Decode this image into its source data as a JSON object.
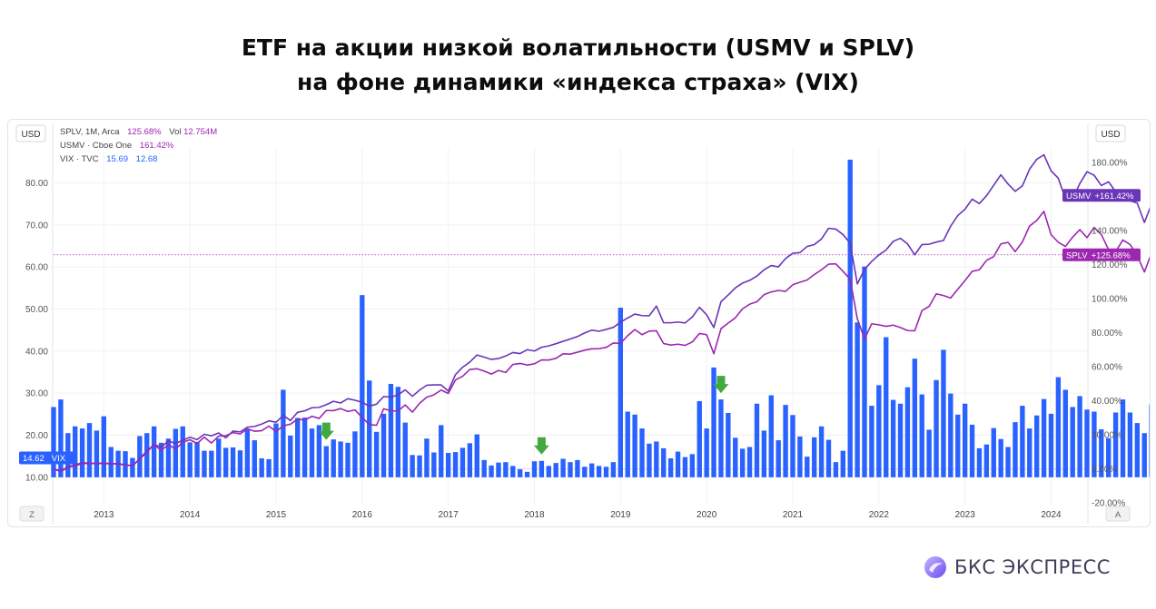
{
  "title_line1": "ETF на акции низкой волатильности (USMV и SPLV)",
  "title_line2": "на фоне динамики «индекса страха» (VIX)",
  "brand": "БКС ЭКСПРЕСС",
  "colors": {
    "vix": "#2962ff",
    "usmv": "#6a35b8",
    "splv": "#9c27b0",
    "arrow": "#43a83d"
  },
  "legend": {
    "splv_name": "SPLV, 1M, Arca",
    "splv_pct": "125.68%",
    "splv_vol": "Vol",
    "splv_vol_value": "12.754M",
    "usmv_name": "USMV · Cboe One",
    "usmv_pct": "161.42%",
    "vix_name": "VIX · TVC",
    "vix_v1": "15.69",
    "vix_v2": "12.68"
  },
  "currency_left": "USD",
  "currency_right": "USD",
  "corner_left": "Z",
  "corner_right": "A",
  "chart_data": {
    "type": "bar+line",
    "x_ticks": [
      "2013",
      "2014",
      "2015",
      "2016",
      "2017",
      "2018",
      "2019",
      "2020",
      "2021",
      "2022",
      "2023",
      "2024"
    ],
    "x_range": [
      "2012-06",
      "2024-06"
    ],
    "left_axis": {
      "ticks": [
        "10.00",
        "20.00",
        "30.00",
        "40.00",
        "50.00",
        "60.00",
        "70.00",
        "80.00"
      ],
      "range": [
        3.5,
        88.5
      ]
    },
    "right_axis": {
      "ticks": [
        "-20.00%",
        "0.00%",
        "20.00%",
        "40.00%",
        "60.00%",
        "80.00%",
        "100.00%",
        "120.00%",
        "140.00%",
        "160.00%",
        "180.00%"
      ],
      "range": [
        -21,
        189
      ]
    },
    "markers": [
      {
        "label": "USMV",
        "value": "+161.42%"
      },
      {
        "label": "SPLV",
        "value": "+125.68%"
      },
      {
        "label": "14.62",
        "name": "VIX"
      }
    ],
    "arrow_dates": [
      "2015-08",
      "2018-02",
      "2020-03"
    ],
    "series": [
      {
        "name": "VIX",
        "kind": "bar",
        "start": "2012-06",
        "values": [
          26.7,
          28.5,
          20.5,
          22.1,
          21.6,
          22.9,
          21.1,
          24.5,
          17.2,
          16.3,
          16.2,
          14.6,
          19.8,
          20.5,
          22.1,
          18.2,
          19.2,
          21.5,
          22.1,
          18.3,
          18.4,
          16.3,
          16.3,
          19.2,
          17.0,
          17.1,
          16.4,
          21.3,
          18.8,
          14.5,
          14.3,
          22.8,
          30.8,
          19.9,
          24.1,
          24.2,
          21.6,
          22.4,
          17.4,
          19.0,
          18.5,
          18.2,
          20.9,
          53.3,
          33.0,
          20.8,
          25.1,
          32.2,
          31.5,
          23.0,
          15.3,
          15.2,
          19.2,
          15.9,
          22.4,
          15.8,
          16.0,
          17.0,
          18.1,
          20.2,
          14.1,
          12.8,
          13.5,
          13.6,
          12.7,
          11.9,
          11.3,
          13.8,
          13.9,
          12.7,
          13.4,
          14.4,
          13.6,
          14.1,
          12.5,
          13.3,
          12.7,
          12.5,
          13.6,
          50.3,
          25.6,
          24.9,
          21.6,
          18.0,
          18.5,
          16.9,
          14.5,
          16.1,
          14.8,
          15.5,
          28.1,
          21.6,
          36.1,
          28.5,
          25.3,
          19.4,
          16.8,
          17.2,
          27.5,
          21.1,
          29.5,
          18.8,
          27.2,
          24.8,
          19.7,
          14.9,
          19.5,
          22.1,
          18.9,
          13.6,
          16.3,
          85.5,
          46.8,
          60.1,
          27.0,
          31.9,
          43.3,
          28.4,
          27.5,
          31.4,
          38.2,
          29.7,
          21.3,
          33.1,
          40.3,
          29.9,
          24.9,
          27.5,
          22.5,
          16.9,
          17.8,
          21.7,
          19.1,
          17.2,
          23.1,
          27.0,
          21.6,
          24.7,
          28.6,
          25.1,
          33.8,
          30.8,
          26.7,
          29.3,
          26.1,
          25.6,
          21.4,
          19.3,
          25.4,
          28.5,
          25.4,
          22.9,
          20.5,
          27.3,
          27.4,
          24.6,
          19.4,
          22.3,
          20.4,
          19.7,
          29.4,
          18.9,
          18.6,
          18.2,
          14.1,
          16.8,
          13.3,
          13.6,
          14.6
        ]
      },
      {
        "name": "USMV",
        "kind": "line",
        "unit": "%",
        "start": "2012-06",
        "values": [
          0.0,
          -1.2,
          1.2,
          2.4,
          3.6,
          3.3,
          3.1,
          3.2,
          2.9,
          3.1,
          2.3,
          1.7,
          6.0,
          10.4,
          14.3,
          12.8,
          16.4,
          15.0,
          16.8,
          18.6,
          17.2,
          20.3,
          19.4,
          21.1,
          18.2,
          22.2,
          21.7,
          24.5,
          24.9,
          26.3,
          28.2,
          27.4,
          31.4,
          28.4,
          33.2,
          34.1,
          35.9,
          36.1,
          37.7,
          39.7,
          38.7,
          41.2,
          40.3,
          39.1,
          36.8,
          38.0,
          42.5,
          42.1,
          43.5,
          46.4,
          42.6,
          46.3,
          49.1,
          49.3,
          49.3,
          45.7,
          55.4,
          59.7,
          62.7,
          66.9,
          65.6,
          64.3,
          64.8,
          66.3,
          68.3,
          67.7,
          70.0,
          69.2,
          71.4,
          72.2,
          73.5,
          74.9,
          76.3,
          77.7,
          79.8,
          81.5,
          80.8,
          81.9,
          83.1,
          86.1,
          88.6,
          90.9,
          90.0,
          89.9,
          95.6,
          85.8,
          85.8,
          86.2,
          85.7,
          89.2,
          94.9,
          90.5,
          83.0,
          98.2,
          102.1,
          106.3,
          109.1,
          110.7,
          113.2,
          116.9,
          119.4,
          118.6,
          123.5,
          126.6,
          127.0,
          130.6,
          131.7,
          135.0,
          141.3,
          140.8,
          137.6,
          132.5,
          108.6,
          117.2,
          121.8,
          125.6,
          128.5,
          133.6,
          135.4,
          132.1,
          125.7,
          131.7,
          131.9,
          133.2,
          134.1,
          142.5,
          148.8,
          152.5,
          158.4,
          155.8,
          160.4,
          166.5,
          172.7,
          167.3,
          163.0,
          166.2,
          176.0,
          181.8,
          184.4,
          175.0,
          170.7,
          158.6,
          158.6,
          167.5,
          174.5,
          172.4,
          166.4,
          168.6,
          162.8,
          162.5,
          157.5,
          156.1,
          144.7,
          155.6,
          162.6,
          165.9,
          161.3,
          155.6,
          152.8,
          153.3,
          150.8,
          156.0,
          157.0,
          153.3,
          157.1,
          162.0,
          164.0,
          162.6,
          162.1,
          161.4
        ]
      },
      {
        "name": "SPLV",
        "kind": "line",
        "unit": "%",
        "start": "2012-06",
        "values": [
          0.0,
          -1.6,
          0.8,
          1.8,
          3.1,
          3.3,
          3.2,
          3.4,
          3.1,
          2.9,
          2.2,
          2.0,
          5.6,
          9.9,
          14.2,
          10.9,
          14.2,
          11.6,
          15.6,
          17.1,
          14.9,
          18.6,
          15.2,
          19.2,
          19.5,
          21.3,
          20.5,
          23.5,
          22.1,
          22.4,
          25.1,
          21.9,
          25.3,
          26.2,
          29.2,
          28.6,
          30.9,
          29.6,
          34.3,
          34.2,
          35.4,
          33.7,
          34.6,
          30.2,
          26.0,
          25.6,
          35.3,
          34.1,
          34.0,
          37.5,
          33.3,
          38.5,
          42.1,
          43.5,
          46.3,
          44.3,
          52.2,
          54.4,
          58.4,
          58.8,
          57.4,
          55.7,
          57.8,
          56.6,
          61.3,
          61.9,
          61.0,
          61.7,
          64.0,
          63.9,
          64.9,
          67.6,
          67.4,
          68.5,
          69.7,
          70.5,
          70.6,
          71.3,
          73.9,
          73.7,
          78.2,
          81.8,
          78.8,
          80.9,
          81.1,
          73.6,
          72.7,
          73.2,
          72.5,
          74.5,
          79.5,
          78.8,
          67.6,
          82.3,
          85.6,
          88.7,
          94.0,
          96.7,
          98.1,
          102.3,
          103.9,
          104.8,
          104.2,
          108.1,
          109.6,
          110.9,
          114.1,
          116.9,
          120.2,
          120.4,
          116.0,
          111.4,
          88.1,
          76.3,
          85.2,
          84.6,
          83.7,
          84.4,
          83.0,
          81.2,
          81.1,
          92.9,
          95.4,
          102.8,
          101.8,
          100.3,
          105.5,
          110.6,
          116.0,
          116.9,
          122.4,
          124.7,
          132.1,
          133.0,
          127.6,
          133.3,
          142.6,
          145.9,
          151.2,
          137.5,
          133.1,
          130.6,
          136.1,
          140.5,
          135.8,
          141.8,
          137.6,
          128.8,
          127.6,
          134.4,
          131.8,
          125.3,
          115.6,
          126.8,
          133.1,
          134.7,
          131.2,
          125.7,
          126.1,
          133.0,
          131.7,
          133.8,
          130.0,
          124.2,
          124.7,
          130.1,
          132.6,
          126.1,
          126.3,
          125.7
        ]
      }
    ]
  }
}
